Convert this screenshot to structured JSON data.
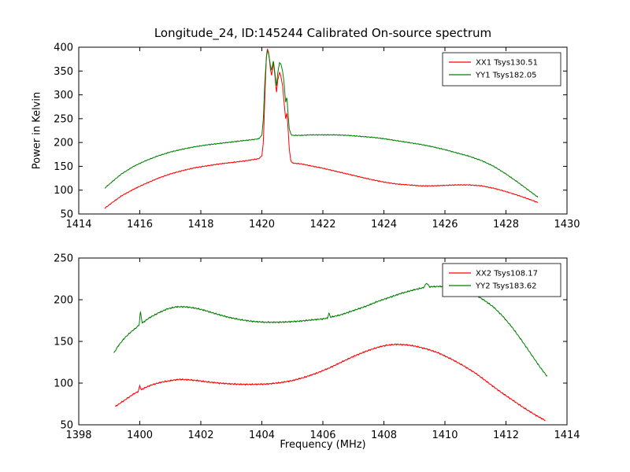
{
  "figure": {
    "background": "#ffffff",
    "axis_color": "#000000"
  },
  "chart_data": [
    {
      "type": "line",
      "title": "Longitude_24, ID:145244 Calibrated On-source spectrum",
      "xlabel": "",
      "ylabel": "Power in Kelvin",
      "xlim": [
        1414,
        1430
      ],
      "ylim": [
        50,
        400
      ],
      "xticks": [
        1414,
        1416,
        1418,
        1420,
        1422,
        1424,
        1426,
        1428,
        1430
      ],
      "yticks": [
        50,
        100,
        150,
        200,
        250,
        300,
        350,
        400
      ],
      "grid": false,
      "legend_position": "upper right",
      "series": [
        {
          "name": "XX1 Tsys130.51",
          "color": "#ff0000",
          "noise": 0.9,
          "points": [
            [
              1414.85,
              62
            ],
            [
              1415.1,
              74
            ],
            [
              1415.4,
              88
            ],
            [
              1415.8,
              102
            ],
            [
              1416.2,
              114
            ],
            [
              1416.6,
              125
            ],
            [
              1417.0,
              134
            ],
            [
              1417.4,
              141
            ],
            [
              1417.8,
              147
            ],
            [
              1418.2,
              151
            ],
            [
              1418.6,
              155
            ],
            [
              1419.0,
              158
            ],
            [
              1419.4,
              161
            ],
            [
              1419.7,
              164
            ],
            [
              1419.9,
              166
            ],
            [
              1420.0,
              172
            ],
            [
              1420.05,
              200
            ],
            [
              1420.1,
              300
            ],
            [
              1420.15,
              380
            ],
            [
              1420.18,
              397
            ],
            [
              1420.22,
              390
            ],
            [
              1420.28,
              355
            ],
            [
              1420.32,
              340
            ],
            [
              1420.38,
              368
            ],
            [
              1420.42,
              345
            ],
            [
              1420.48,
              305
            ],
            [
              1420.52,
              330
            ],
            [
              1420.58,
              348
            ],
            [
              1420.62,
              340
            ],
            [
              1420.68,
              320
            ],
            [
              1420.72,
              290
            ],
            [
              1420.78,
              250
            ],
            [
              1420.82,
              262
            ],
            [
              1420.86,
              230
            ],
            [
              1420.9,
              185
            ],
            [
              1420.95,
              162
            ],
            [
              1421.0,
              157
            ],
            [
              1421.3,
              155
            ],
            [
              1421.6,
              151
            ],
            [
              1422.0,
              146
            ],
            [
              1422.4,
              140
            ],
            [
              1422.8,
              134
            ],
            [
              1423.2,
              128
            ],
            [
              1423.6,
              122
            ],
            [
              1424.0,
              117
            ],
            [
              1424.4,
              113
            ],
            [
              1424.8,
              111
            ],
            [
              1425.2,
              109
            ],
            [
              1425.6,
              109
            ],
            [
              1426.0,
              110
            ],
            [
              1426.4,
              111
            ],
            [
              1426.8,
              111
            ],
            [
              1427.2,
              109
            ],
            [
              1427.6,
              104
            ],
            [
              1428.0,
              97
            ],
            [
              1428.4,
              89
            ],
            [
              1428.8,
              80
            ],
            [
              1429.05,
              74
            ]
          ]
        },
        {
          "name": "YY1 Tsys182.05",
          "color": "#008000",
          "noise": 0.9,
          "points": [
            [
              1414.85,
              104
            ],
            [
              1415.1,
              118
            ],
            [
              1415.4,
              134
            ],
            [
              1415.8,
              150
            ],
            [
              1416.2,
              162
            ],
            [
              1416.6,
              172
            ],
            [
              1417.0,
              180
            ],
            [
              1417.4,
              186
            ],
            [
              1417.8,
              191
            ],
            [
              1418.2,
              195
            ],
            [
              1418.6,
              198
            ],
            [
              1419.0,
              201
            ],
            [
              1419.4,
              204
            ],
            [
              1419.7,
              206
            ],
            [
              1419.9,
              208
            ],
            [
              1420.0,
              215
            ],
            [
              1420.05,
              250
            ],
            [
              1420.1,
              330
            ],
            [
              1420.15,
              378
            ],
            [
              1420.18,
              392
            ],
            [
              1420.22,
              388
            ],
            [
              1420.28,
              362
            ],
            [
              1420.32,
              352
            ],
            [
              1420.38,
              372
            ],
            [
              1420.42,
              350
            ],
            [
              1420.48,
              318
            ],
            [
              1420.52,
              345
            ],
            [
              1420.58,
              368
            ],
            [
              1420.62,
              365
            ],
            [
              1420.68,
              350
            ],
            [
              1420.72,
              330
            ],
            [
              1420.78,
              285
            ],
            [
              1420.82,
              295
            ],
            [
              1420.86,
              260
            ],
            [
              1420.9,
              228
            ],
            [
              1420.95,
              218
            ],
            [
              1421.0,
              215
            ],
            [
              1421.3,
              215
            ],
            [
              1421.6,
              216
            ],
            [
              1422.0,
              216
            ],
            [
              1422.4,
              216
            ],
            [
              1422.8,
              215
            ],
            [
              1423.2,
              213
            ],
            [
              1423.6,
              211
            ],
            [
              1424.0,
              208
            ],
            [
              1424.4,
              204
            ],
            [
              1424.8,
              200
            ],
            [
              1425.2,
              196
            ],
            [
              1425.6,
              191
            ],
            [
              1426.0,
              185
            ],
            [
              1426.4,
              178
            ],
            [
              1426.8,
              171
            ],
            [
              1427.2,
              162
            ],
            [
              1427.6,
              150
            ],
            [
              1428.0,
              134
            ],
            [
              1428.4,
              116
            ],
            [
              1428.8,
              97
            ],
            [
              1429.05,
              85
            ]
          ]
        }
      ]
    },
    {
      "type": "line",
      "title": "",
      "xlabel": "Frequency (MHz)",
      "ylabel": "",
      "xlim": [
        1398,
        1414
      ],
      "ylim": [
        50,
        250
      ],
      "xticks": [
        1398,
        1400,
        1402,
        1404,
        1406,
        1408,
        1410,
        1412,
        1414
      ],
      "yticks": [
        50,
        100,
        150,
        200,
        250
      ],
      "grid": false,
      "legend_position": "upper right",
      "series": [
        {
          "name": "XX2 Tsys108.17",
          "color": "#ff0000",
          "noise": 0.8,
          "points": [
            [
              1399.2,
              72
            ],
            [
              1399.4,
              77
            ],
            [
              1399.6,
              82
            ],
            [
              1399.8,
              87
            ],
            [
              1399.95,
              90
            ],
            [
              1400.0,
              97
            ],
            [
              1400.05,
              92
            ],
            [
              1400.2,
              95
            ],
            [
              1400.4,
              98
            ],
            [
              1400.7,
              101
            ],
            [
              1401.0,
              103
            ],
            [
              1401.3,
              104.5
            ],
            [
              1401.6,
              104
            ],
            [
              1401.9,
              103
            ],
            [
              1402.2,
              101.5
            ],
            [
              1402.6,
              100
            ],
            [
              1403.0,
              99
            ],
            [
              1403.4,
              98.5
            ],
            [
              1403.8,
              98.5
            ],
            [
              1404.2,
              99
            ],
            [
              1404.6,
              100.5
            ],
            [
              1405.0,
              103
            ],
            [
              1405.4,
              107
            ],
            [
              1405.8,
              112
            ],
            [
              1406.2,
              118
            ],
            [
              1406.6,
              125
            ],
            [
              1407.0,
              132
            ],
            [
              1407.4,
              138
            ],
            [
              1407.8,
              143
            ],
            [
              1408.1,
              145.5
            ],
            [
              1408.4,
              146.5
            ],
            [
              1408.7,
              146
            ],
            [
              1409.0,
              144.5
            ],
            [
              1409.4,
              141
            ],
            [
              1409.8,
              136
            ],
            [
              1410.2,
              129
            ],
            [
              1410.6,
              121
            ],
            [
              1411.0,
              112
            ],
            [
              1411.4,
              101
            ],
            [
              1411.8,
              90
            ],
            [
              1412.2,
              80
            ],
            [
              1412.6,
              70
            ],
            [
              1413.0,
              61
            ],
            [
              1413.3,
              55
            ]
          ]
        },
        {
          "name": "YY2 Tsys183.62",
          "color": "#008000",
          "noise": 0.8,
          "points": [
            [
              1399.15,
              136
            ],
            [
              1399.3,
              145
            ],
            [
              1399.5,
              154
            ],
            [
              1399.7,
              161
            ],
            [
              1399.9,
              167
            ],
            [
              1399.98,
              170
            ],
            [
              1400.02,
              186
            ],
            [
              1400.08,
              172
            ],
            [
              1400.3,
              178
            ],
            [
              1400.6,
              184
            ],
            [
              1400.9,
              189
            ],
            [
              1401.2,
              191.5
            ],
            [
              1401.5,
              191.5
            ],
            [
              1401.8,
              190
            ],
            [
              1402.1,
              187.5
            ],
            [
              1402.5,
              183
            ],
            [
              1402.9,
              179
            ],
            [
              1403.3,
              176
            ],
            [
              1403.7,
              174
            ],
            [
              1404.1,
              173
            ],
            [
              1404.5,
              173
            ],
            [
              1404.9,
              173.5
            ],
            [
              1405.3,
              174.5
            ],
            [
              1405.7,
              176
            ],
            [
              1406.0,
              177
            ],
            [
              1406.15,
              178
            ],
            [
              1406.2,
              184
            ],
            [
              1406.25,
              179
            ],
            [
              1406.6,
              182
            ],
            [
              1407.0,
              187
            ],
            [
              1407.4,
              192
            ],
            [
              1407.8,
              198
            ],
            [
              1408.2,
              203
            ],
            [
              1408.6,
              208
            ],
            [
              1409.0,
              212
            ],
            [
              1409.3,
              214.5
            ],
            [
              1409.4,
              220
            ],
            [
              1409.5,
              215.5
            ],
            [
              1409.8,
              216
            ],
            [
              1410.1,
              215.5
            ],
            [
              1410.4,
              213.5
            ],
            [
              1410.7,
              210.5
            ],
            [
              1411.0,
              206
            ],
            [
              1411.3,
              199
            ],
            [
              1411.6,
              191
            ],
            [
              1411.9,
              180
            ],
            [
              1412.2,
              167
            ],
            [
              1412.5,
              152
            ],
            [
              1412.8,
              136
            ],
            [
              1413.1,
              120
            ],
            [
              1413.35,
              108
            ]
          ]
        }
      ]
    }
  ]
}
